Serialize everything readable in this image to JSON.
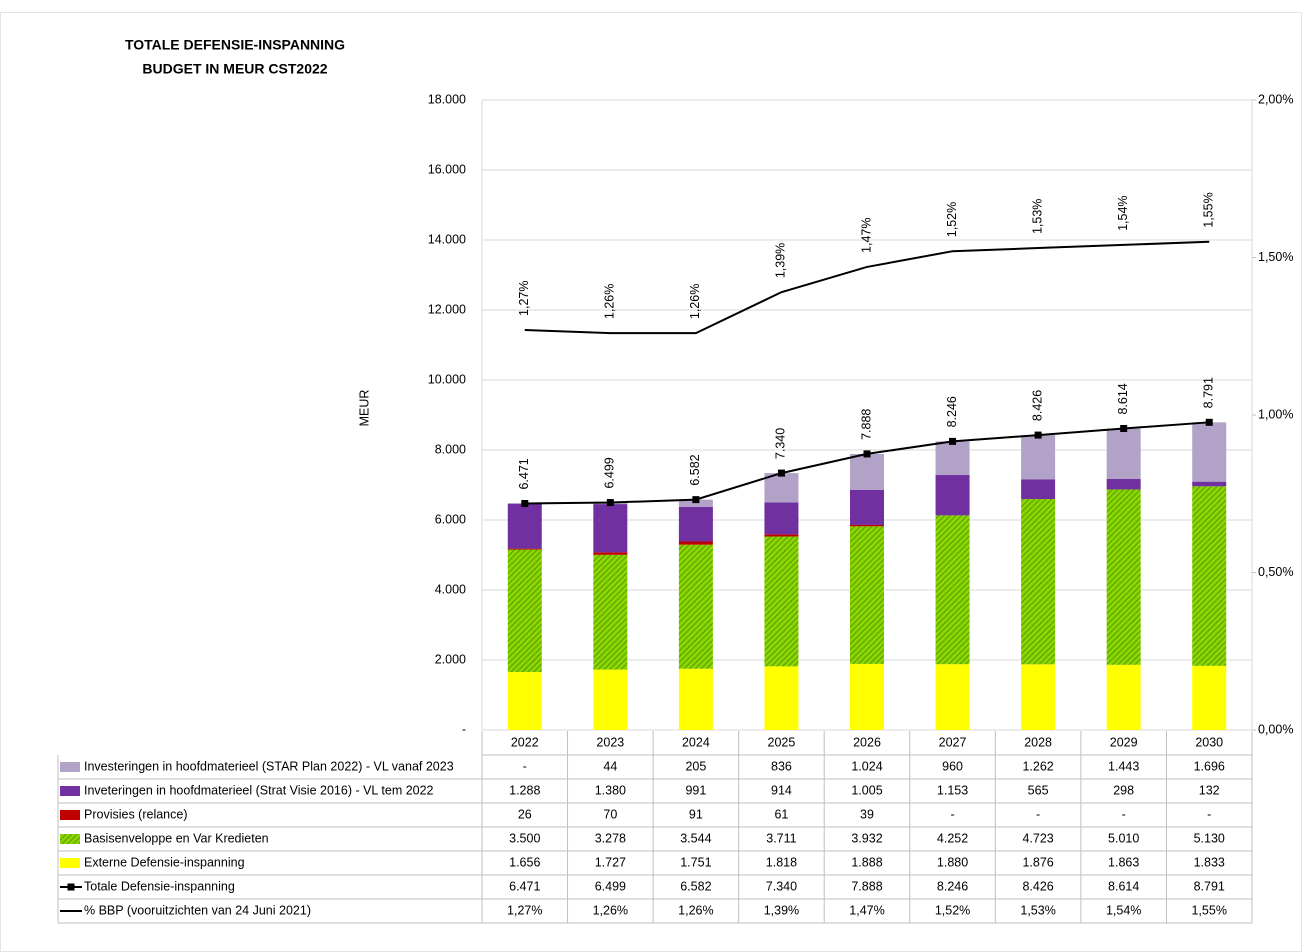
{
  "chart_data": {
    "type": "bar",
    "title": "TOTALE DEFENSIE-INSPANNING",
    "subtitle": "BUDGET IN MEUR CST2022",
    "y_label": "MEUR",
    "categories": [
      "2022",
      "2023",
      "2024",
      "2025",
      "2026",
      "2027",
      "2028",
      "2029",
      "2030"
    ],
    "ylim": [
      0,
      18000
    ],
    "yticks": [
      {
        "value": 0,
        "label": "-"
      },
      {
        "value": 2000,
        "label": "2.000"
      },
      {
        "value": 4000,
        "label": "4.000"
      },
      {
        "value": 6000,
        "label": "6.000"
      },
      {
        "value": 8000,
        "label": "8.000"
      },
      {
        "value": 10000,
        "label": "10.000"
      },
      {
        "value": 12000,
        "label": "12.000"
      },
      {
        "value": 14000,
        "label": "14.000"
      },
      {
        "value": 16000,
        "label": "16.000"
      },
      {
        "value": 18000,
        "label": "18.000"
      }
    ],
    "y2lim": [
      0,
      2
    ],
    "y2ticks": [
      {
        "value": 0,
        "label": "0,00%"
      },
      {
        "value": 0.5,
        "label": "0,50%"
      },
      {
        "value": 1,
        "label": "1,00%"
      },
      {
        "value": 1.5,
        "label": "1,50%"
      },
      {
        "value": 2,
        "label": "2,00%"
      }
    ],
    "grid": true,
    "series": [
      {
        "name": "Investeringen in hoofdmaterieel (STAR Plan 2022) - VL vanaf 2023",
        "type": "bar",
        "color": "#b3a2c7",
        "values": [
          null,
          44,
          205,
          836,
          1024,
          960,
          1262,
          1443,
          1696
        ],
        "value_labels": [
          "-",
          "44",
          "205",
          "836",
          "1.024",
          "960",
          "1.262",
          "1.443",
          "1.696"
        ]
      },
      {
        "name": "Inveteringen in hoofdmaterieel (Strat Visie 2016) - VL tem 2022",
        "type": "bar",
        "color": "#7030a0",
        "values": [
          1288,
          1380,
          991,
          914,
          1005,
          1153,
          565,
          298,
          132
        ],
        "value_labels": [
          "1.288",
          "1.380",
          "991",
          "914",
          "1.005",
          "1.153",
          "565",
          "298",
          "132"
        ]
      },
      {
        "name": "Provisies (relance)",
        "type": "bar",
        "color": "#c00000",
        "values": [
          26,
          70,
          91,
          61,
          39,
          null,
          null,
          null,
          null
        ],
        "value_labels": [
          "26",
          "70",
          "91",
          "61",
          "39",
          "-",
          "-",
          "-",
          "-"
        ]
      },
      {
        "name": "Basisenveloppe en Var Kredieten",
        "type": "bar",
        "color": "#66cc00",
        "hatch": true,
        "values": [
          3500,
          3278,
          3544,
          3711,
          3932,
          4252,
          4723,
          5010,
          5130
        ],
        "value_labels": [
          "3.500",
          "3.278",
          "3.544",
          "3.711",
          "3.932",
          "4.252",
          "4.723",
          "5.010",
          "5.130"
        ]
      },
      {
        "name": "Externe Defensie-inspanning",
        "type": "bar",
        "color": "#ffff00",
        "values": [
          1656,
          1727,
          1751,
          1818,
          1888,
          1880,
          1876,
          1863,
          1833
        ],
        "value_labels": [
          "1.656",
          "1.727",
          "1.751",
          "1.818",
          "1.888",
          "1.880",
          "1.876",
          "1.863",
          "1.833"
        ]
      },
      {
        "name": "Totale Defensie-inspanning",
        "type": "line",
        "color": "#000000",
        "markers": true,
        "values": [
          6471,
          6499,
          6582,
          7340,
          7888,
          8246,
          8426,
          8614,
          8791
        ],
        "value_labels": [
          "6.471",
          "6.499",
          "6.582",
          "7.340",
          "7.888",
          "8.246",
          "8.426",
          "8.614",
          "8.791"
        ]
      },
      {
        "name": "% BBP (vooruitzichten van 24 Juni 2021)",
        "type": "line",
        "color": "#000000",
        "axis": "y2",
        "values": [
          1.27,
          1.26,
          1.26,
          1.39,
          1.47,
          1.52,
          1.53,
          1.54,
          1.55
        ],
        "value_labels": [
          "1,27%",
          "1,26%",
          "1,26%",
          "1,39%",
          "1,47%",
          "1,52%",
          "1,53%",
          "1,54%",
          "1,55%"
        ]
      }
    ]
  }
}
